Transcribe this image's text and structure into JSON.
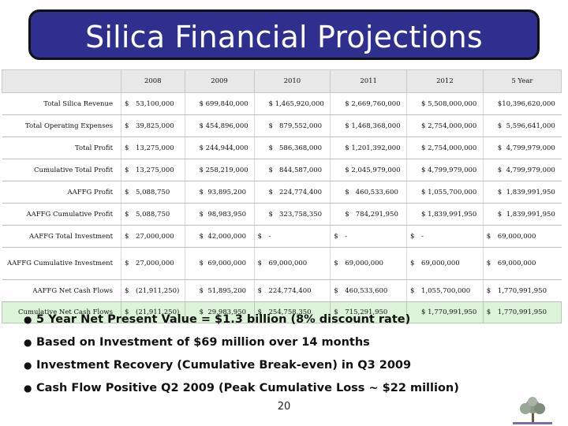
{
  "title": "Silica Financial Projections",
  "table": {
    "headers": [
      "2008",
      "2009",
      "2010",
      "2011",
      "2012",
      "5 Year"
    ],
    "rows": [
      {
        "label": "Total Silica Revenue",
        "cells": [
          {
            "d": "$",
            "v": "53,100,000"
          },
          {
            "d": "",
            "v": "$ 699,840,000"
          },
          {
            "d": "",
            "v": "$ 1,465,920,000"
          },
          {
            "d": "",
            "v": "$ 2,669,760,000"
          },
          {
            "d": "",
            "v": "$ 5,508,000,000"
          },
          {
            "d": "",
            "v": "$10,396,620,000"
          }
        ]
      },
      {
        "label": "Total Operating Expenses",
        "cells": [
          {
            "d": "$",
            "v": "39,825,000"
          },
          {
            "d": "",
            "v": "$ 454,896,000"
          },
          {
            "d": "",
            "v": "$   879,552,000"
          },
          {
            "d": "",
            "v": "$ 1,468,368,000"
          },
          {
            "d": "",
            "v": "$ 2,754,000,000"
          },
          {
            "d": "",
            "v": "$  5,596,641,000"
          }
        ]
      },
      {
        "label": "Total Profit",
        "cells": [
          {
            "d": "$",
            "v": "13,275,000"
          },
          {
            "d": "",
            "v": "$ 244,944,000"
          },
          {
            "d": "",
            "v": "$   586,368,000"
          },
          {
            "d": "",
            "v": "$ 1,201,392,000"
          },
          {
            "d": "",
            "v": "$ 2,754,000,000"
          },
          {
            "d": "",
            "v": "$  4,799,979,000"
          }
        ]
      },
      {
        "label": "Cumulative Total Profit",
        "cells": [
          {
            "d": "$",
            "v": "13,275,000"
          },
          {
            "d": "",
            "v": "$ 258,219,000"
          },
          {
            "d": "",
            "v": "$   844,587,000"
          },
          {
            "d": "",
            "v": "$ 2,045,979,000"
          },
          {
            "d": "",
            "v": "$ 4,799,979,000"
          },
          {
            "d": "",
            "v": "$  4,799,979,000"
          }
        ]
      },
      {
        "label": "AAFFG Profit",
        "cells": [
          {
            "d": "$",
            "v": "5,088,750"
          },
          {
            "d": "",
            "v": "$  93,895,200"
          },
          {
            "d": "",
            "v": "$   224,774,400"
          },
          {
            "d": "",
            "v": "$   460,533,600"
          },
          {
            "d": "",
            "v": "$ 1,055,700,000"
          },
          {
            "d": "",
            "v": "$  1,839,991,950"
          }
        ]
      },
      {
        "label": "AAFFG Cumulative Profit",
        "cells": [
          {
            "d": "$",
            "v": "5,088,750"
          },
          {
            "d": "",
            "v": "$  98,983,950"
          },
          {
            "d": "",
            "v": "$   323,758,350"
          },
          {
            "d": "",
            "v": "$   784,291,950"
          },
          {
            "d": "",
            "v": "$ 1,839,991,950"
          },
          {
            "d": "",
            "v": "$  1,839,991,950"
          }
        ]
      },
      {
        "label": "AAFFG Total Investment",
        "cells": [
          {
            "d": "$",
            "v": "27,000,000"
          },
          {
            "d": "",
            "v": "$  42,000,000"
          },
          {
            "d": "$",
            "v": "-"
          },
          {
            "d": "$",
            "v": "-"
          },
          {
            "d": "$",
            "v": "-"
          },
          {
            "d": "$",
            "v": "69,000,000"
          }
        ]
      },
      {
        "label": "AAFFG Cumulative Investment",
        "tall": true,
        "cells": [
          {
            "d": "$",
            "v": "27,000,000"
          },
          {
            "d": "",
            "v": "$  69,000,000"
          },
          {
            "d": "$",
            "v": "69,000,000"
          },
          {
            "d": "$",
            "v": "69,000,000"
          },
          {
            "d": "$",
            "v": "69,000,000"
          },
          {
            "d": "$",
            "v": "69,000,000"
          }
        ]
      },
      {
        "label": "AAFFG Net Cash Flows",
        "cells": [
          {
            "d": "$",
            "v": "(21,911,250)"
          },
          {
            "d": "",
            "v": "$  51,895,200"
          },
          {
            "d": "$",
            "v": "224,774,400"
          },
          {
            "d": "$",
            "v": "460,533,600"
          },
          {
            "d": "$",
            "v": "1,055,700,000"
          },
          {
            "d": "$",
            "v": "1,770,991,950"
          }
        ]
      },
      {
        "label": "Cumulative Net Cash Flows",
        "green": true,
        "cells": [
          {
            "d": "$",
            "v": "(21,911,250)"
          },
          {
            "d": "",
            "v": "$  29,983,950"
          },
          {
            "d": "$",
            "v": "254,758,350"
          },
          {
            "d": "$",
            "v": "715,291,950"
          },
          {
            "d": "",
            "v": "$ 1,770,991,950"
          },
          {
            "d": "$",
            "v": "1,770,991,950"
          }
        ]
      }
    ]
  },
  "bullets": [
    "5 Year Net Present Value =  $1.3 billion (8% discount rate)",
    "Based on Investment of $69 million over 14 months",
    "Investment Recovery (Cumulative Break-even) in Q3 2009",
    "Cash Flow Positive Q2 2009 (Peak Cumulative Loss ~ $22 million)"
  ],
  "page_number": "20",
  "logo_icon": "tree-logo-icon"
}
